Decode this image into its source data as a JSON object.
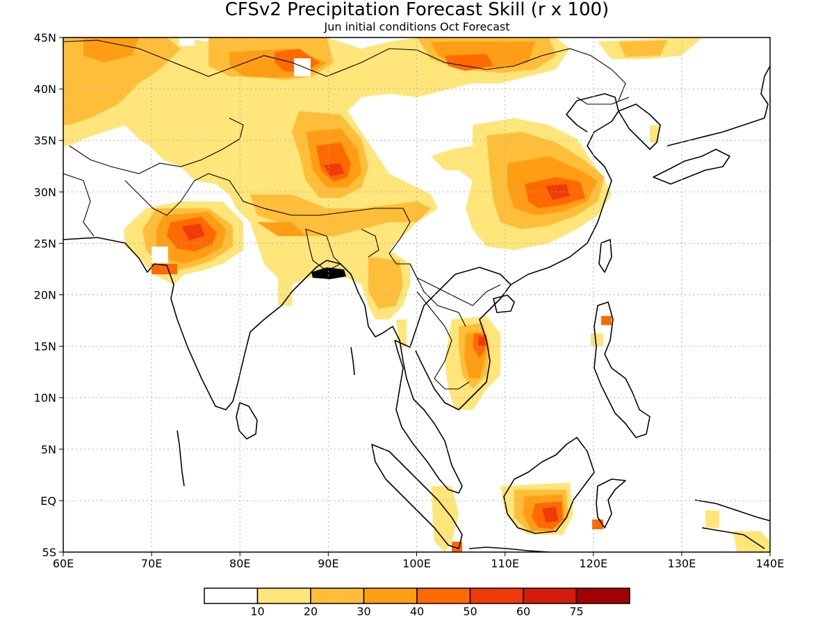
{
  "title": "CFSv2 Precipitation Forecast Skill (r x 100)",
  "subtitle": "Jun initial conditions  Oct Forecast",
  "map": {
    "lon_range": [
      60,
      140
    ],
    "lat_range": [
      -5,
      45
    ],
    "lon_ticks": [
      {
        "value": 60,
        "label": "60E"
      },
      {
        "value": 70,
        "label": "70E"
      },
      {
        "value": 80,
        "label": "80E"
      },
      {
        "value": 90,
        "label": "90E"
      },
      {
        "value": 100,
        "label": "100E"
      },
      {
        "value": 110,
        "label": "110E"
      },
      {
        "value": 120,
        "label": "120E"
      },
      {
        "value": 130,
        "label": "130E"
      },
      {
        "value": 140,
        "label": "140E"
      }
    ],
    "lat_ticks": [
      {
        "value": 45,
        "label": "45N"
      },
      {
        "value": 40,
        "label": "40N"
      },
      {
        "value": 35,
        "label": "35N"
      },
      {
        "value": 30,
        "label": "30N"
      },
      {
        "value": 25,
        "label": "25N"
      },
      {
        "value": 20,
        "label": "20N"
      },
      {
        "value": 15,
        "label": "15N"
      },
      {
        "value": 10,
        "label": "10N"
      },
      {
        "value": 5,
        "label": "5N"
      },
      {
        "value": 0,
        "label": "EQ"
      },
      {
        "value": -5,
        "label": "5S"
      }
    ],
    "gridlines": "dotted"
  },
  "legend": {
    "levels": [
      {
        "color": "#ffffff",
        "label": "10"
      },
      {
        "color": "#ffe57a",
        "label": "20"
      },
      {
        "color": "#ffbe3a",
        "label": "30"
      },
      {
        "color": "#ff9e14",
        "label": "40"
      },
      {
        "color": "#ff6a00",
        "label": "50"
      },
      {
        "color": "#f03a0a",
        "label": "60"
      },
      {
        "color": "#d41c0c",
        "label": "75"
      },
      {
        "color": "#a20000",
        "label": ""
      }
    ]
  },
  "skill_regions": [
    {
      "name": "northern-india-pakistan",
      "lon": 74.5,
      "lat": 26,
      "rx": 6,
      "ry": 3.2,
      "level": 4
    },
    {
      "name": "tibet-central",
      "lon": 91,
      "lat": 32.5,
      "rx": 3.2,
      "ry": 4.5,
      "level": 4
    },
    {
      "name": "mongolia-north",
      "lon": 105.5,
      "lat": 43,
      "rx": 6,
      "ry": 2.2,
      "level": 4
    },
    {
      "name": "xinjiang",
      "lon": 87,
      "lat": 42,
      "rx": 4.5,
      "ry": 2,
      "level": 4
    },
    {
      "name": "yangtze-basin",
      "lon": 113,
      "lat": 30,
      "rx": 6,
      "ry": 2.4,
      "level": 4
    },
    {
      "name": "kazakhstan",
      "lon": 64.5,
      "lat": 42,
      "rx": 5,
      "ry": 2.8,
      "level": 2
    },
    {
      "name": "borneo-south",
      "lon": 114,
      "lat": -1.5,
      "rx": 3.5,
      "ry": 2,
      "level": 4
    },
    {
      "name": "indochina-coast",
      "lon": 107.5,
      "lat": 14,
      "rx": 1.6,
      "ry": 3.5,
      "level": 4
    },
    {
      "name": "bay-of-bengal-land",
      "lon": 89,
      "lat": 26.5,
      "rx": 6,
      "ry": 2.4,
      "level": 2
    },
    {
      "name": "myanmar",
      "lon": 97.5,
      "lat": 21.5,
      "rx": 2,
      "ry": 3,
      "level": 2
    }
  ]
}
